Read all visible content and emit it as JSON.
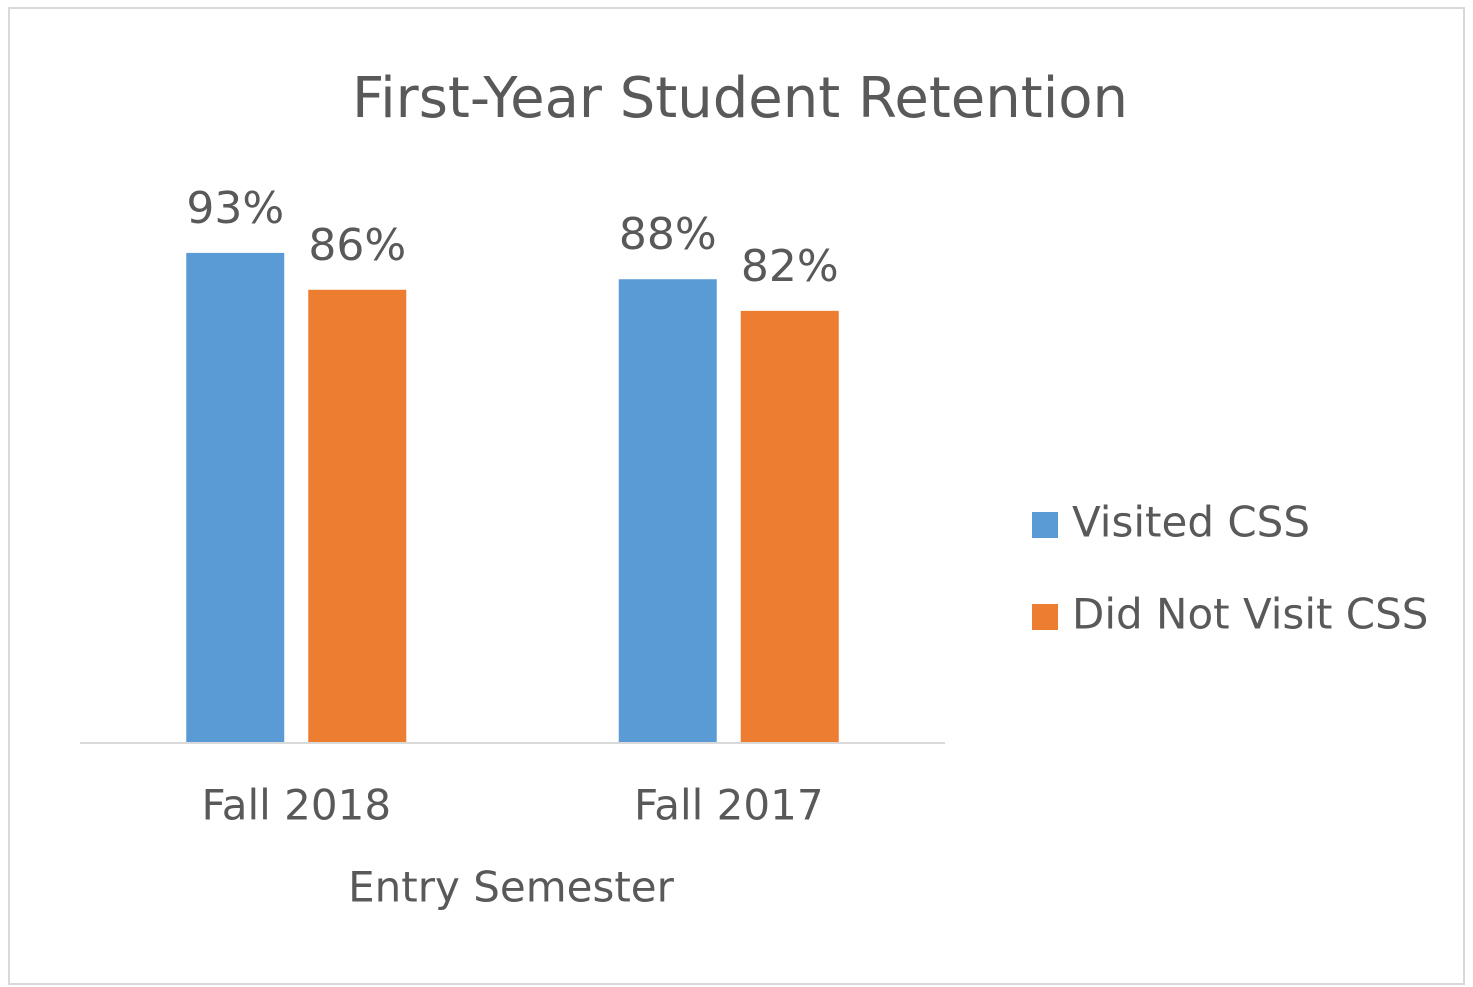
{
  "chart_data": {
    "type": "bar",
    "title": "First-Year Student Retention",
    "x_label": "Entry Semester",
    "categories": [
      "Fall 2018",
      "Fall 2017"
    ],
    "series": [
      {
        "name": "Visited CSS",
        "color": "#5b9bd5",
        "values": [
          93,
          88
        ],
        "value_labels": [
          "93%",
          "88%"
        ]
      },
      {
        "name": "Did Not Visit CSS",
        "color": "#ed7d31",
        "values": [
          86,
          82
        ],
        "value_labels": [
          "86%",
          "82%"
        ]
      }
    ],
    "ylim": [
      0,
      100
    ],
    "grid": false,
    "legend": "right"
  }
}
